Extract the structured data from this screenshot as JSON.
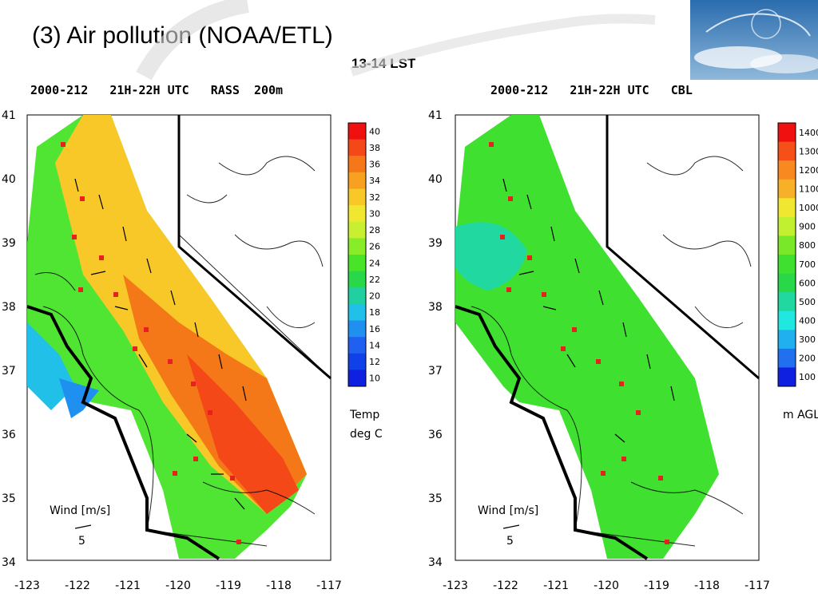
{
  "slide": {
    "title": "(3) Air pollution (NOAA/ETL)",
    "subtitle": "13-14 LST"
  },
  "logo": {
    "icon": "cloud-wind-icon"
  },
  "maps": [
    {
      "header": "2000-212   21H-22H UTC   RASS  200m",
      "colorbar_labels": [
        "40",
        "38",
        "36",
        "34",
        "32",
        "30",
        "28",
        "26",
        "24",
        "22",
        "20",
        "18",
        "16",
        "14",
        "12",
        "10"
      ],
      "colorbar_title_line1": "Temp",
      "colorbar_title_line2": "deg C",
      "colors": [
        "#f01010",
        "#f44818",
        "#f47818",
        "#f8a020",
        "#f8c828",
        "#f0e830",
        "#c8f030",
        "#88ec28",
        "#48e428",
        "#28d848",
        "#20d0a0",
        "#20c0e8",
        "#2090f0",
        "#2060f0",
        "#1040e8",
        "#1020e0"
      ]
    },
    {
      "header": "2000-212   21H-22H UTC   CBL",
      "colorbar_labels": [
        "1400",
        "1300",
        "1200",
        "1100",
        "1000",
        "900",
        "800",
        "700",
        "600",
        "500",
        "400",
        "300",
        "200",
        "100"
      ],
      "colorbar_title_line1": "m AGL",
      "colorbar_title_line2": "",
      "colors": [
        "#f01010",
        "#f45018",
        "#f88820",
        "#f8b028",
        "#f0e830",
        "#c0f030",
        "#78e828",
        "#40e030",
        "#28d848",
        "#20d8a0",
        "#20e8e0",
        "#20b0f0",
        "#2070f0",
        "#1020e0"
      ]
    }
  ],
  "axes": {
    "y_ticks": [
      "41",
      "40",
      "39",
      "38",
      "37",
      "36",
      "35",
      "34"
    ],
    "x_ticks": [
      "-123",
      "-122",
      "-121",
      "-120",
      "-119",
      "-118",
      "-117"
    ]
  },
  "wind_legend": {
    "label": "Wind [m/s]",
    "scale": "5"
  }
}
